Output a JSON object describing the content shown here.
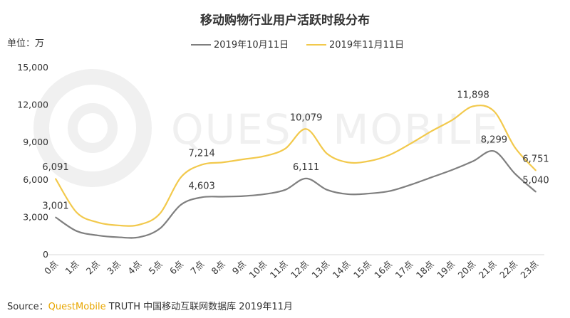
{
  "chart_data": {
    "type": "line",
    "title": "移动购物行业用户活跃时段分布",
    "unit_label": "单位：万",
    "categories": [
      "0点",
      "1点",
      "2点",
      "3点",
      "4点",
      "5点",
      "6点",
      "7点",
      "8点",
      "9点",
      "10点",
      "11点",
      "12点",
      "13点",
      "14点",
      "15点",
      "16点",
      "17点",
      "18点",
      "19点",
      "20点",
      "21点",
      "22点",
      "23点"
    ],
    "ylim": [
      0,
      15000
    ],
    "yticks": [
      "0",
      "3,000",
      "6,000",
      "9,000",
      "12,000",
      "15,000"
    ],
    "ytick_values": [
      0,
      3000,
      6000,
      9000,
      12000,
      15000
    ],
    "series": [
      {
        "name": "2019年10月11日",
        "color": "#7f7f7f",
        "values": [
          3001,
          1900,
          1550,
          1400,
          1400,
          2100,
          4000,
          4603,
          4650,
          4700,
          4850,
          5200,
          6111,
          5200,
          4850,
          4900,
          5100,
          5600,
          6200,
          6800,
          7500,
          8299,
          6500,
          5040
        ],
        "labels": [
          {
            "index": 0,
            "text": "3,001"
          },
          {
            "index": 7,
            "text": "4,603"
          },
          {
            "index": 12,
            "text": "6,111"
          },
          {
            "index": 21,
            "text": "8,299"
          },
          {
            "index": 23,
            "text": "5,040"
          }
        ]
      },
      {
        "name": "2019年11月11日",
        "color": "#f2c94c",
        "values": [
          6091,
          3400,
          2600,
          2350,
          2400,
          3300,
          6200,
          7214,
          7400,
          7650,
          7900,
          8500,
          10079,
          8100,
          7400,
          7500,
          8000,
          8900,
          9900,
          10800,
          11898,
          11500,
          8600,
          6751
        ],
        "labels": [
          {
            "index": 0,
            "text": "6,091"
          },
          {
            "index": 7,
            "text": "7,214"
          },
          {
            "index": 12,
            "text": "10,079"
          },
          {
            "index": 20,
            "text": "11,898"
          },
          {
            "index": 23,
            "text": "6,751"
          }
        ]
      }
    ],
    "legend_position": "top-center",
    "grid": false
  },
  "watermark": "QUEST MOBILE",
  "source": {
    "prefix": "Source：",
    "brand": "QuestMobile",
    "rest": "TRUTH 中国移动互联网数据库 2019年11月"
  }
}
